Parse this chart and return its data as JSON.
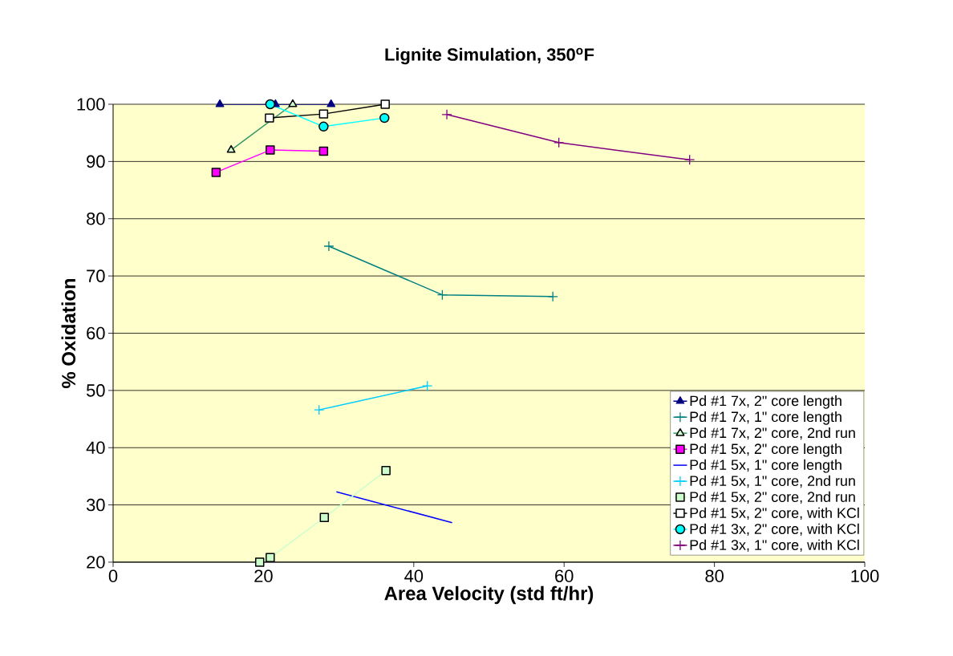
{
  "chart_data": {
    "type": "line",
    "title": "Lignite Simulation, 350$^{o}$F",
    "xlabel": "Area Velocity (std ft/hr)",
    "ylabel": "% Oxidation",
    "xlim": [
      0,
      100
    ],
    "xticks": [
      0,
      20,
      40,
      60,
      80,
      100
    ],
    "ylim": [
      20,
      100
    ],
    "yticks": [
      20,
      30,
      40,
      50,
      60,
      70,
      80,
      90,
      100
    ],
    "grid": "y",
    "legend": "bottom right",
    "series": [
      {
        "name": "Pd #1 7x, 2\" core length",
        "color": "#000080",
        "marker": "triangle",
        "x": [
          14.2,
          21.6,
          29.0
        ],
        "values": [
          100,
          100,
          100
        ]
      },
      {
        "name": "Pd #1 7x, 1\" core length",
        "color": "#008080",
        "marker": "cross",
        "x": [
          28.7,
          43.8,
          58.5
        ],
        "values": [
          75.2,
          66.7,
          66.4
        ]
      },
      {
        "name": "Pd #1 7x, 2\" core, 2nd run",
        "color": "#339966",
        "colors": [
          "#ccffcc",
          "#ccffcc"
        ],
        "marker": "triangle",
        "x": [
          15.7,
          23.9
        ],
        "values": [
          92.0,
          100
        ]
      },
      {
        "name": "Pd #1 5x, 2\" core length",
        "color": "#ff00ff",
        "marker": "square",
        "x": [
          13.7,
          20.9,
          28.0
        ],
        "values": [
          88.1,
          92.0,
          91.8
        ]
      },
      {
        "name": "Pd #1 5x, 1\" core length",
        "color": "#0000ff",
        "marker": "none",
        "x": [
          29.7,
          45.1
        ],
        "values": [
          32.3,
          26.9
        ]
      },
      {
        "name": "Pd #1 5x, 1\" core, 2nd run",
        "color": "#00ccff",
        "marker": "cross",
        "x": [
          27.4,
          41.8
        ],
        "values": [
          46.6,
          50.8
        ]
      },
      {
        "name": "Pd #1 5x, 2\" core, 2nd run",
        "color": "#ccffcc",
        "marker": "square",
        "x": [
          19.5,
          20.9,
          28.1,
          36.3
        ],
        "values": [
          20,
          20.8,
          27.8,
          36.0
        ]
      },
      {
        "name": "Pd #1 5x, 2\" core, with KCl",
        "color": "#000000",
        "colors": [
          "#ffffff",
          "#ffffff",
          "#ffffff"
        ],
        "marker": "square",
        "x": [
          20.8,
          28.0,
          36.2
        ],
        "values": [
          97.6,
          98.3,
          100
        ]
      },
      {
        "name": "Pd #1 3x, 2\" core, with KCl",
        "color": "#00ffff",
        "marker": "circle",
        "x": [
          20.9,
          28.0,
          36.1
        ],
        "values": [
          100,
          96.1,
          97.6
        ]
      },
      {
        "name": "Pd #1 3x, 1\" core, with KCl",
        "color": "#800080",
        "marker": "cross",
        "x": [
          44.4,
          59.3,
          76.7
        ],
        "values": [
          98.2,
          93.3,
          90.3
        ]
      }
    ]
  }
}
